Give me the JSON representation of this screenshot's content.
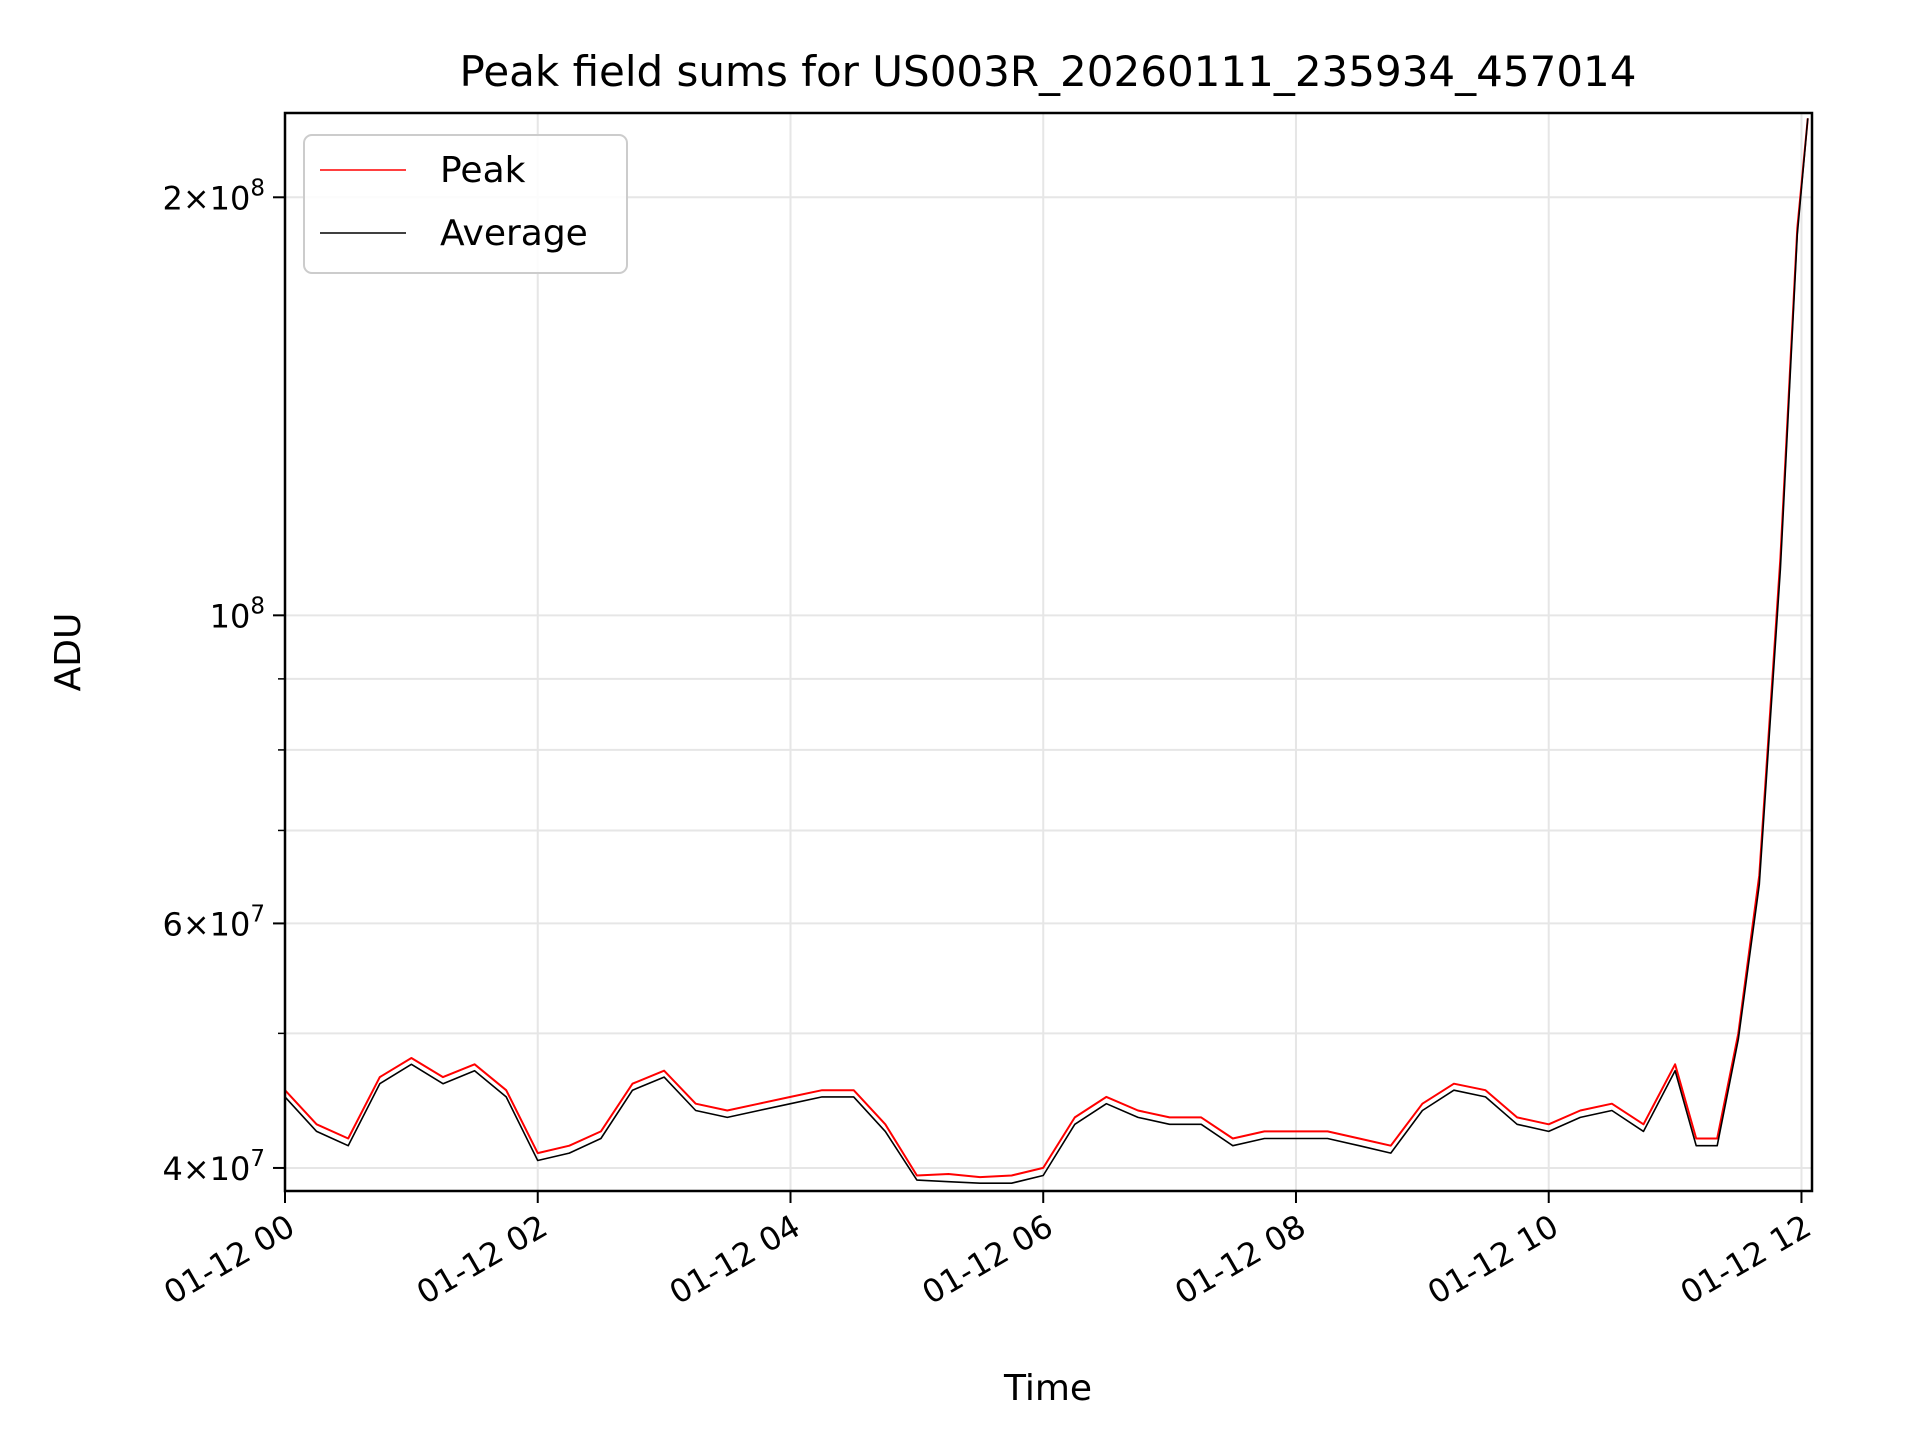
{
  "chart_data": {
    "type": "line",
    "title": "Peak field sums for US003R_20260111_235934_457014",
    "xlabel": "Time",
    "ylabel": "ADU",
    "yscale": "log",
    "xlim": [
      "2026-01-12 00:00",
      "2026-01-12 12:05"
    ],
    "ylim": [
      38500000,
      230000000
    ],
    "grid": true,
    "legend_position": "upper-left",
    "x_ticks": [
      "01-12 00",
      "01-12 02",
      "01-12 04",
      "01-12 06",
      "01-12 08",
      "01-12 10",
      "01-12 12"
    ],
    "y_major_ticks": [
      {
        "value": 40000000,
        "mantissa": "4",
        "exponent": "7"
      },
      {
        "value": 60000000,
        "mantissa": "6",
        "exponent": "7"
      },
      {
        "value": 100000000,
        "mantissa": "",
        "exponent": "8"
      },
      {
        "value": 200000000,
        "mantissa": "2",
        "exponent": "8"
      }
    ],
    "y_minor_ticks": [
      50000000,
      70000000,
      80000000,
      90000000
    ],
    "series": [
      {
        "name": "Peak",
        "color": "#ff0000",
        "points": [
          [
            "2026-01-12 00:00",
            45500000
          ],
          [
            "2026-01-12 00:15",
            43000000
          ],
          [
            "2026-01-12 00:30",
            42000000
          ],
          [
            "2026-01-12 00:45",
            46500000
          ],
          [
            "2026-01-12 01:00",
            48000000
          ],
          [
            "2026-01-12 01:15",
            46500000
          ],
          [
            "2026-01-12 01:30",
            47500000
          ],
          [
            "2026-01-12 01:45",
            45500000
          ],
          [
            "2026-01-12 02:00",
            41000000
          ],
          [
            "2026-01-12 02:15",
            41500000
          ],
          [
            "2026-01-12 02:30",
            42500000
          ],
          [
            "2026-01-12 02:45",
            46000000
          ],
          [
            "2026-01-12 03:00",
            47000000
          ],
          [
            "2026-01-12 03:15",
            44500000
          ],
          [
            "2026-01-12 03:30",
            44000000
          ],
          [
            "2026-01-12 03:45",
            44500000
          ],
          [
            "2026-01-12 04:00",
            45000000
          ],
          [
            "2026-01-12 04:15",
            45500000
          ],
          [
            "2026-01-12 04:30",
            45500000
          ],
          [
            "2026-01-12 04:45",
            43000000
          ],
          [
            "2026-01-12 05:00",
            39500000
          ],
          [
            "2026-01-12 05:15",
            39600000
          ],
          [
            "2026-01-12 05:30",
            39400000
          ],
          [
            "2026-01-12 05:45",
            39500000
          ],
          [
            "2026-01-12 06:00",
            40000000
          ],
          [
            "2026-01-12 06:15",
            43500000
          ],
          [
            "2026-01-12 06:30",
            45000000
          ],
          [
            "2026-01-12 06:45",
            44000000
          ],
          [
            "2026-01-12 07:00",
            43500000
          ],
          [
            "2026-01-12 07:15",
            43500000
          ],
          [
            "2026-01-12 07:30",
            42000000
          ],
          [
            "2026-01-12 07:45",
            42500000
          ],
          [
            "2026-01-12 08:00",
            42500000
          ],
          [
            "2026-01-12 08:15",
            42500000
          ],
          [
            "2026-01-12 08:30",
            42000000
          ],
          [
            "2026-01-12 08:45",
            41500000
          ],
          [
            "2026-01-12 09:00",
            44500000
          ],
          [
            "2026-01-12 09:15",
            46000000
          ],
          [
            "2026-01-12 09:30",
            45500000
          ],
          [
            "2026-01-12 09:45",
            43500000
          ],
          [
            "2026-01-12 10:00",
            43000000
          ],
          [
            "2026-01-12 10:15",
            44000000
          ],
          [
            "2026-01-12 10:30",
            44500000
          ],
          [
            "2026-01-12 10:45",
            43000000
          ],
          [
            "2026-01-12 11:00",
            47500000
          ],
          [
            "2026-01-12 11:10",
            42000000
          ],
          [
            "2026-01-12 11:20",
            42000000
          ],
          [
            "2026-01-12 11:30",
            50000000
          ],
          [
            "2026-01-12 11:40",
            65000000
          ],
          [
            "2026-01-12 11:50",
            110000000
          ],
          [
            "2026-01-12 11:58",
            190000000
          ],
          [
            "2026-01-12 12:03",
            228000000
          ]
        ]
      },
      {
        "name": "Average",
        "color": "#000000",
        "points": [
          [
            "2026-01-12 00:00",
            45000000
          ],
          [
            "2026-01-12 00:15",
            42500000
          ],
          [
            "2026-01-12 00:30",
            41500000
          ],
          [
            "2026-01-12 00:45",
            46000000
          ],
          [
            "2026-01-12 01:00",
            47500000
          ],
          [
            "2026-01-12 01:15",
            46000000
          ],
          [
            "2026-01-12 01:30",
            47000000
          ],
          [
            "2026-01-12 01:45",
            45000000
          ],
          [
            "2026-01-12 02:00",
            40500000
          ],
          [
            "2026-01-12 02:15",
            41000000
          ],
          [
            "2026-01-12 02:30",
            42000000
          ],
          [
            "2026-01-12 02:45",
            45500000
          ],
          [
            "2026-01-12 03:00",
            46500000
          ],
          [
            "2026-01-12 03:15",
            44000000
          ],
          [
            "2026-01-12 03:30",
            43500000
          ],
          [
            "2026-01-12 03:45",
            44000000
          ],
          [
            "2026-01-12 04:00",
            44500000
          ],
          [
            "2026-01-12 04:15",
            45000000
          ],
          [
            "2026-01-12 04:30",
            45000000
          ],
          [
            "2026-01-12 04:45",
            42500000
          ],
          [
            "2026-01-12 05:00",
            39200000
          ],
          [
            "2026-01-12 05:15",
            39100000
          ],
          [
            "2026-01-12 05:30",
            39000000
          ],
          [
            "2026-01-12 05:45",
            39000000
          ],
          [
            "2026-01-12 06:00",
            39500000
          ],
          [
            "2026-01-12 06:15",
            43000000
          ],
          [
            "2026-01-12 06:30",
            44500000
          ],
          [
            "2026-01-12 06:45",
            43500000
          ],
          [
            "2026-01-12 07:00",
            43000000
          ],
          [
            "2026-01-12 07:15",
            43000000
          ],
          [
            "2026-01-12 07:30",
            41500000
          ],
          [
            "2026-01-12 07:45",
            42000000
          ],
          [
            "2026-01-12 08:00",
            42000000
          ],
          [
            "2026-01-12 08:15",
            42000000
          ],
          [
            "2026-01-12 08:30",
            41500000
          ],
          [
            "2026-01-12 08:45",
            41000000
          ],
          [
            "2026-01-12 09:00",
            44000000
          ],
          [
            "2026-01-12 09:15",
            45500000
          ],
          [
            "2026-01-12 09:30",
            45000000
          ],
          [
            "2026-01-12 09:45",
            43000000
          ],
          [
            "2026-01-12 10:00",
            42500000
          ],
          [
            "2026-01-12 10:15",
            43500000
          ],
          [
            "2026-01-12 10:30",
            44000000
          ],
          [
            "2026-01-12 10:45",
            42500000
          ],
          [
            "2026-01-12 11:00",
            47000000
          ],
          [
            "2026-01-12 11:10",
            41500000
          ],
          [
            "2026-01-12 11:20",
            41500000
          ],
          [
            "2026-01-12 11:30",
            49500000
          ],
          [
            "2026-01-12 11:40",
            64000000
          ],
          [
            "2026-01-12 11:50",
            108000000
          ],
          [
            "2026-01-12 11:58",
            188000000
          ],
          [
            "2026-01-12 12:03",
            228000000
          ]
        ]
      }
    ]
  }
}
